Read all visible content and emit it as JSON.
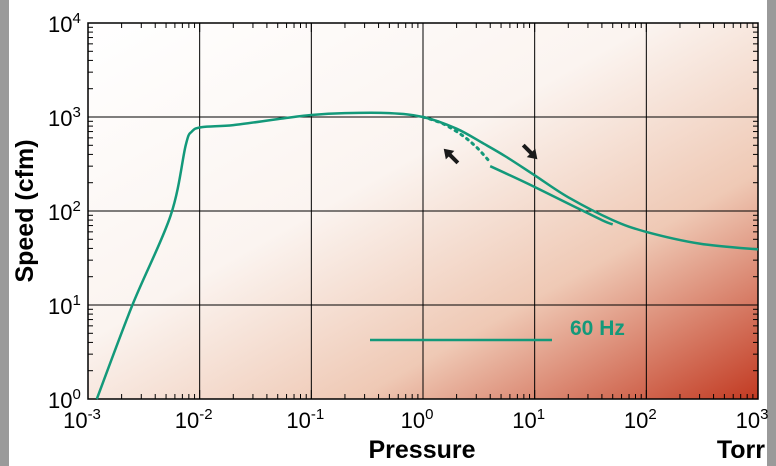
{
  "chart_data": {
    "type": "line",
    "title": "",
    "xlabel": "Pressure",
    "xunit": "Torr",
    "ylabel": "Speed (cfm)",
    "x_scale": "log",
    "y_scale": "log",
    "xlim": [
      0.001,
      1000
    ],
    "ylim": [
      1,
      10000
    ],
    "grid": true,
    "x_ticks": [
      {
        "base": "10",
        "exp": "-3"
      },
      {
        "base": "10",
        "exp": "-2"
      },
      {
        "base": "10",
        "exp": "-1"
      },
      {
        "base": "10",
        "exp": "0"
      },
      {
        "base": "10",
        "exp": "1"
      },
      {
        "base": "10",
        "exp": "2"
      },
      {
        "base": "10",
        "exp": "3"
      }
    ],
    "y_ticks": [
      {
        "base": "10",
        "exp": "0"
      },
      {
        "base": "10",
        "exp": "1"
      },
      {
        "base": "10",
        "exp": "2"
      },
      {
        "base": "10",
        "exp": "3"
      },
      {
        "base": "10",
        "exp": "4"
      }
    ],
    "series": [
      {
        "name": "60 Hz",
        "color": "#13997a",
        "style": "solid",
        "points": [
          [
            0.0012,
            1.0
          ],
          [
            0.0025,
            10
          ],
          [
            0.0055,
            90
          ],
          [
            0.0075,
            500
          ],
          [
            0.0085,
            700
          ],
          [
            0.0105,
            780
          ],
          [
            0.02,
            820
          ],
          [
            0.05,
            950
          ],
          [
            0.1,
            1050
          ],
          [
            0.2,
            1100
          ],
          [
            0.5,
            1100
          ],
          [
            1.0,
            1000
          ],
          [
            2.0,
            750
          ],
          [
            3.5,
            520
          ],
          [
            5.5,
            380
          ],
          [
            10,
            240
          ],
          [
            20,
            140
          ],
          [
            50,
            80
          ],
          [
            100,
            60
          ],
          [
            300,
            45
          ],
          [
            1000,
            39
          ]
        ]
      },
      {
        "name": "60 Hz",
        "color": "#13997a",
        "style": "solid",
        "points": [
          [
            4.0,
            300
          ],
          [
            6.0,
            240
          ],
          [
            10,
            180
          ],
          [
            20,
            120
          ],
          [
            40,
            80
          ],
          [
            50,
            72
          ]
        ]
      },
      {
        "name": "60 Hz",
        "color": "#13997a",
        "style": "dotted",
        "points": [
          [
            1.0,
            1000
          ],
          [
            1.5,
            850
          ],
          [
            2.2,
            650
          ],
          [
            3.0,
            480
          ],
          [
            4.0,
            330
          ]
        ]
      }
    ],
    "annotations": [
      {
        "type": "arrow",
        "direction": "up-left",
        "x": 1.8,
        "y": 380,
        "color": "#1a1a1a"
      },
      {
        "type": "arrow",
        "direction": "down-right",
        "x": 9.0,
        "y": 430,
        "color": "#1a1a1a"
      }
    ],
    "legend": {
      "label": "60 Hz",
      "placement": "bottom-center",
      "color": "#13997a"
    },
    "background_gradient": {
      "from": "#ffffff",
      "to": "#c23a22",
      "direction": "to bottom-right"
    }
  }
}
